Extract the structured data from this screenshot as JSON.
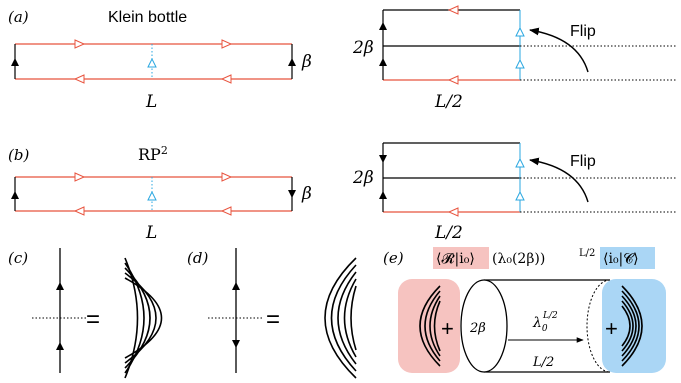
{
  "panel_labels": {
    "a": "(a)",
    "b": "(b)",
    "c": "(c)",
    "d": "(d)",
    "e": "(e)"
  },
  "texts": {
    "klein_bottle": "Klein bottle",
    "rp2": "RP",
    "rp2_sup": "2",
    "beta": "β",
    "two_beta": "2β",
    "L": "L",
    "L_half": "L/2",
    "flip": "Flip",
    "equals": "=",
    "plus": "+",
    "lambda": "λ",
    "lambda_sub": "0",
    "lambda_sup": "L/2",
    "e_L_half": "L/2",
    "e_two_beta": "2β"
  },
  "formula": {
    "left": "⟨𝓡|i₀⟩",
    "middle": "(λ₀(2β))",
    "middle_sup": "L/2",
    "right": "⟨i₀|𝓒⟩"
  },
  "colors": {
    "red_arrow": "#e8543f",
    "blue_arrow": "#2aa7e0",
    "pink_box": "#f6c3c0",
    "blue_box": "#aad6f5",
    "line": "#000000"
  }
}
